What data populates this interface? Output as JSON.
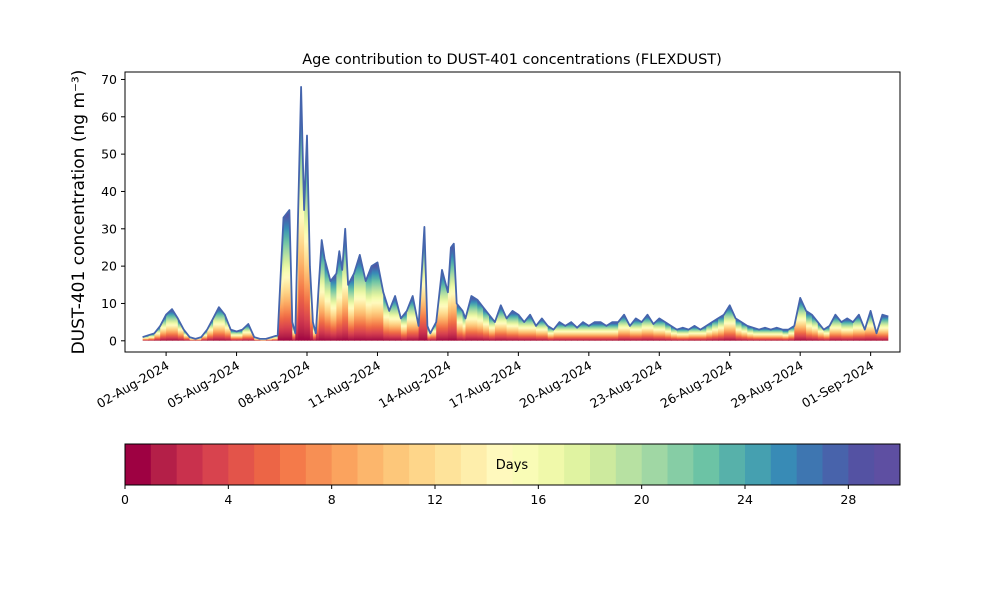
{
  "chart_data": {
    "type": "area",
    "title": "Age contribution to DUST-401 concentrations (FLEXDUST)",
    "ylabel": "DUST-401 concentration (ng m⁻³)",
    "xlabel": "",
    "ylim": [
      -3,
      72
    ],
    "xlim": [
      "2024-07-31T06:00",
      "2024-09-02T06:00"
    ],
    "yticks": [
      0,
      10,
      20,
      30,
      40,
      50,
      60,
      70
    ],
    "xticks": [
      "2024-08-02",
      "2024-08-05",
      "2024-08-08",
      "2024-08-11",
      "2024-08-14",
      "2024-08-17",
      "2024-08-20",
      "2024-08-23",
      "2024-08-26",
      "2024-08-29",
      "2024-09-01"
    ],
    "xtick_labels": [
      "02-Aug-2024",
      "05-Aug-2024",
      "08-Aug-2024",
      "11-Aug-2024",
      "14-Aug-2024",
      "17-Aug-2024",
      "20-Aug-2024",
      "23-Aug-2024",
      "26-Aug-2024",
      "29-Aug-2024",
      "01-Sep-2024"
    ],
    "grid": false,
    "colormap": "Spectral",
    "colorbar": {
      "label": "Days",
      "range": [
        0,
        30
      ],
      "bins": 30,
      "ticks": [
        0,
        4,
        8,
        12,
        16,
        20,
        24,
        28
      ],
      "colors": [
        "#9e0142",
        "#b41f48",
        "#c9314d",
        "#d8434e",
        "#e3544a",
        "#ec6546",
        "#f47a4a",
        "#f78f54",
        "#fba35e",
        "#fcb66c",
        "#fdc77a",
        "#fed68a",
        "#fee39a",
        "#feeeab",
        "#fff9bd",
        "#f9fcb6",
        "#f0f9aa",
        "#e0f3a1",
        "#cdea9e",
        "#b7e1a2",
        "#a0d7a4",
        "#86cda5",
        "#6cc3a5",
        "#57b1aa",
        "#45a0b0",
        "#388bb6",
        "#3e76b1",
        "#4863ab",
        "#5452a3",
        "#5e4fa2"
      ]
    },
    "total": [
      [
        "2024-08-01T00:00",
        1
      ],
      [
        "2024-08-01T06:00",
        1.5
      ],
      [
        "2024-08-01T12:00",
        2
      ],
      [
        "2024-08-01T18:00",
        4
      ],
      [
        "2024-08-02T00:00",
        7
      ],
      [
        "2024-08-02T06:00",
        8.5
      ],
      [
        "2024-08-02T12:00",
        6
      ],
      [
        "2024-08-02T18:00",
        3
      ],
      [
        "2024-08-03T00:00",
        1
      ],
      [
        "2024-08-03T06:00",
        0.5
      ],
      [
        "2024-08-03T12:00",
        1
      ],
      [
        "2024-08-03T18:00",
        3
      ],
      [
        "2024-08-04T00:00",
        6
      ],
      [
        "2024-08-04T06:00",
        9
      ],
      [
        "2024-08-04T12:00",
        7
      ],
      [
        "2024-08-04T18:00",
        3
      ],
      [
        "2024-08-05T00:00",
        2.5
      ],
      [
        "2024-08-05T06:00",
        3
      ],
      [
        "2024-08-05T12:00",
        4.5
      ],
      [
        "2024-08-05T18:00",
        1
      ],
      [
        "2024-08-06T00:00",
        0.5
      ],
      [
        "2024-08-06T06:00",
        0.5
      ],
      [
        "2024-08-06T12:00",
        1
      ],
      [
        "2024-08-06T18:00",
        1.5
      ],
      [
        "2024-08-07T00:00",
        33
      ],
      [
        "2024-08-07T06:00",
        35
      ],
      [
        "2024-08-07T09:00",
        5
      ],
      [
        "2024-08-07T12:00",
        2
      ],
      [
        "2024-08-07T15:00",
        35
      ],
      [
        "2024-08-07T18:00",
        68
      ],
      [
        "2024-08-07T21:00",
        35
      ],
      [
        "2024-08-08T00:00",
        55
      ],
      [
        "2024-08-08T03:00",
        20
      ],
      [
        "2024-08-08T06:00",
        5
      ],
      [
        "2024-08-08T09:00",
        2
      ],
      [
        "2024-08-08T12:00",
        15
      ],
      [
        "2024-08-08T15:00",
        27
      ],
      [
        "2024-08-08T18:00",
        22
      ],
      [
        "2024-08-09T00:00",
        16
      ],
      [
        "2024-08-09T06:00",
        18
      ],
      [
        "2024-08-09T09:00",
        24
      ],
      [
        "2024-08-09T12:00",
        19
      ],
      [
        "2024-08-09T15:00",
        30
      ],
      [
        "2024-08-09T18:00",
        15
      ],
      [
        "2024-08-10T00:00",
        18
      ],
      [
        "2024-08-10T06:00",
        23
      ],
      [
        "2024-08-10T12:00",
        16
      ],
      [
        "2024-08-10T18:00",
        20
      ],
      [
        "2024-08-11T00:00",
        21
      ],
      [
        "2024-08-11T06:00",
        13
      ],
      [
        "2024-08-11T12:00",
        8
      ],
      [
        "2024-08-11T18:00",
        12
      ],
      [
        "2024-08-12T00:00",
        6
      ],
      [
        "2024-08-12T06:00",
        8
      ],
      [
        "2024-08-12T12:00",
        12
      ],
      [
        "2024-08-12T18:00",
        4
      ],
      [
        "2024-08-13T00:00",
        30.5
      ],
      [
        "2024-08-13T03:00",
        4
      ],
      [
        "2024-08-13T06:00",
        2
      ],
      [
        "2024-08-13T12:00",
        5
      ],
      [
        "2024-08-13T18:00",
        19
      ],
      [
        "2024-08-14T00:00",
        13
      ],
      [
        "2024-08-14T03:00",
        25
      ],
      [
        "2024-08-14T06:00",
        26
      ],
      [
        "2024-08-14T09:00",
        10
      ],
      [
        "2024-08-14T15:00",
        8
      ],
      [
        "2024-08-14T18:00",
        6
      ],
      [
        "2024-08-15T00:00",
        12
      ],
      [
        "2024-08-15T06:00",
        11
      ],
      [
        "2024-08-15T12:00",
        9
      ],
      [
        "2024-08-15T18:00",
        7
      ],
      [
        "2024-08-16T00:00",
        5
      ],
      [
        "2024-08-16T06:00",
        9.5
      ],
      [
        "2024-08-16T12:00",
        6
      ],
      [
        "2024-08-16T18:00",
        8
      ],
      [
        "2024-08-17T00:00",
        7
      ],
      [
        "2024-08-17T06:00",
        5
      ],
      [
        "2024-08-17T12:00",
        7
      ],
      [
        "2024-08-17T18:00",
        4
      ],
      [
        "2024-08-18T00:00",
        6
      ],
      [
        "2024-08-18T06:00",
        4
      ],
      [
        "2024-08-18T12:00",
        3
      ],
      [
        "2024-08-18T18:00",
        5
      ],
      [
        "2024-08-19T00:00",
        4
      ],
      [
        "2024-08-19T06:00",
        5
      ],
      [
        "2024-08-19T12:00",
        3.5
      ],
      [
        "2024-08-19T18:00",
        5
      ],
      [
        "2024-08-20T00:00",
        4
      ],
      [
        "2024-08-20T06:00",
        5
      ],
      [
        "2024-08-20T12:00",
        5
      ],
      [
        "2024-08-20T18:00",
        4
      ],
      [
        "2024-08-21T00:00",
        5
      ],
      [
        "2024-08-21T06:00",
        5
      ],
      [
        "2024-08-21T12:00",
        7
      ],
      [
        "2024-08-21T18:00",
        4
      ],
      [
        "2024-08-22T00:00",
        6
      ],
      [
        "2024-08-22T06:00",
        5
      ],
      [
        "2024-08-22T12:00",
        7
      ],
      [
        "2024-08-22T18:00",
        4.5
      ],
      [
        "2024-08-23T00:00",
        6
      ],
      [
        "2024-08-23T06:00",
        5
      ],
      [
        "2024-08-23T12:00",
        4
      ],
      [
        "2024-08-23T18:00",
        3
      ],
      [
        "2024-08-24T00:00",
        3.5
      ],
      [
        "2024-08-24T06:00",
        3
      ],
      [
        "2024-08-24T12:00",
        4
      ],
      [
        "2024-08-24T18:00",
        3
      ],
      [
        "2024-08-25T00:00",
        4
      ],
      [
        "2024-08-25T06:00",
        5
      ],
      [
        "2024-08-25T12:00",
        6
      ],
      [
        "2024-08-25T18:00",
        7
      ],
      [
        "2024-08-26T00:00",
        9.5
      ],
      [
        "2024-08-26T06:00",
        6
      ],
      [
        "2024-08-26T12:00",
        5
      ],
      [
        "2024-08-26T18:00",
        4
      ],
      [
        "2024-08-27T00:00",
        3.5
      ],
      [
        "2024-08-27T06:00",
        3
      ],
      [
        "2024-08-27T12:00",
        3.5
      ],
      [
        "2024-08-27T18:00",
        3
      ],
      [
        "2024-08-28T00:00",
        3.5
      ],
      [
        "2024-08-28T06:00",
        3
      ],
      [
        "2024-08-28T12:00",
        3
      ],
      [
        "2024-08-28T18:00",
        4
      ],
      [
        "2024-08-29T00:00",
        11.5
      ],
      [
        "2024-08-29T06:00",
        8
      ],
      [
        "2024-08-29T12:00",
        7
      ],
      [
        "2024-08-29T18:00",
        5
      ],
      [
        "2024-08-30T00:00",
        3
      ],
      [
        "2024-08-30T06:00",
        4
      ],
      [
        "2024-08-30T12:00",
        7
      ],
      [
        "2024-08-30T18:00",
        5
      ],
      [
        "2024-08-31T00:00",
        6
      ],
      [
        "2024-08-31T06:00",
        5
      ],
      [
        "2024-08-31T12:00",
        7
      ],
      [
        "2024-08-31T18:00",
        3
      ],
      [
        "2024-09-01T00:00",
        8
      ],
      [
        "2024-09-01T06:00",
        2
      ],
      [
        "2024-09-01T12:00",
        7
      ],
      [
        "2024-09-01T18:00",
        6.5
      ]
    ]
  }
}
